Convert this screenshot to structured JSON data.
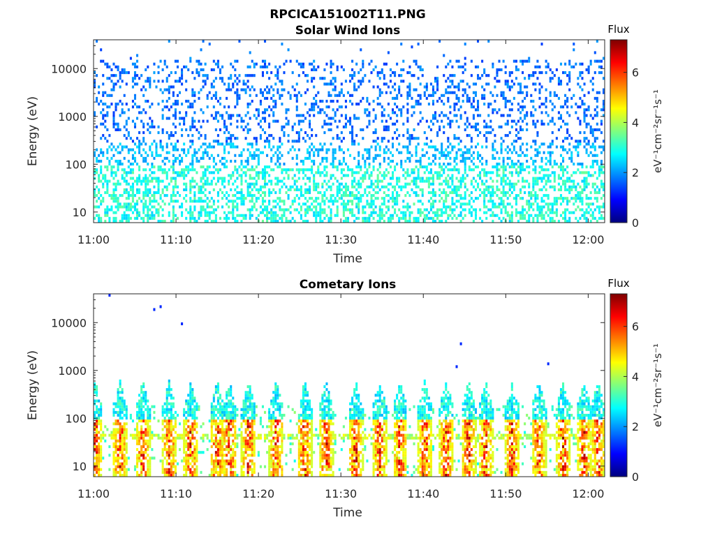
{
  "figure_title": "RPCICA151002T11.PNG",
  "colormap": [
    "#00007f",
    "#0000ff",
    "#007fff",
    "#00ffff",
    "#7fff7f",
    "#ffff00",
    "#ff7f00",
    "#ff0000",
    "#7f0000"
  ],
  "chart_data": [
    {
      "type": "heatmap",
      "title": "Solar Wind Ions",
      "xlabel": "Time",
      "ylabel": "Energy (eV)",
      "x_tick_labels": [
        "11:00",
        "11:10",
        "11:20",
        "11:30",
        "11:40",
        "11:50",
        "12:00"
      ],
      "y_tick_values": [
        10,
        100,
        1000,
        10000
      ],
      "y_tick_labels": [
        "10",
        "100",
        "1000",
        "10000"
      ],
      "y_scale": "log",
      "ylim": [
        6,
        40000
      ],
      "xlim_minutes": [
        0,
        62
      ],
      "colorbar": {
        "title": "Flux",
        "label": "eV⁻¹cm⁻²sr⁻¹s⁻¹",
        "ticks": [
          0,
          2,
          4,
          6
        ],
        "range": [
          0,
          7.3
        ]
      },
      "description": "Scattered blue counts (flux ~1.5-2.5) across 100-15000 eV; cyan/green band (flux ~2.5-3.5) below ~100 eV throughout the interval."
    },
    {
      "type": "heatmap",
      "title": "Cometary Ions",
      "xlabel": "Time",
      "ylabel": "Energy (eV)",
      "x_tick_labels": [
        "11:00",
        "11:10",
        "11:20",
        "11:30",
        "11:40",
        "11:50",
        "12:00"
      ],
      "y_tick_values": [
        10,
        100,
        1000,
        10000
      ],
      "y_tick_labels": [
        "10",
        "100",
        "1000",
        "10000"
      ],
      "y_scale": "log",
      "ylim": [
        6,
        40000
      ],
      "xlim_minutes": [
        0,
        62
      ],
      "colorbar": {
        "title": "Flux",
        "label": "eV⁻¹cm⁻²sr⁻¹s⁻¹",
        "ticks": [
          0,
          2,
          4,
          6
        ],
        "range": [
          0,
          7.3
        ]
      },
      "bursts_minutes": [
        0.2,
        3.2,
        6.0,
        9.2,
        11.8,
        15.0,
        16.5,
        18.8,
        22.2,
        25.6,
        28.2,
        31.8,
        34.7,
        37.2,
        40.2,
        42.8,
        45.5,
        47.6,
        50.8,
        54.0,
        57.0,
        59.5,
        61.2
      ],
      "description": "Periodic vertical bursts of enhanced flux (4-7) at 10-100 eV, extending up to ~500 eV in cyan/blue; persistent band near 40 eV; sparse high-energy single counts."
    }
  ]
}
